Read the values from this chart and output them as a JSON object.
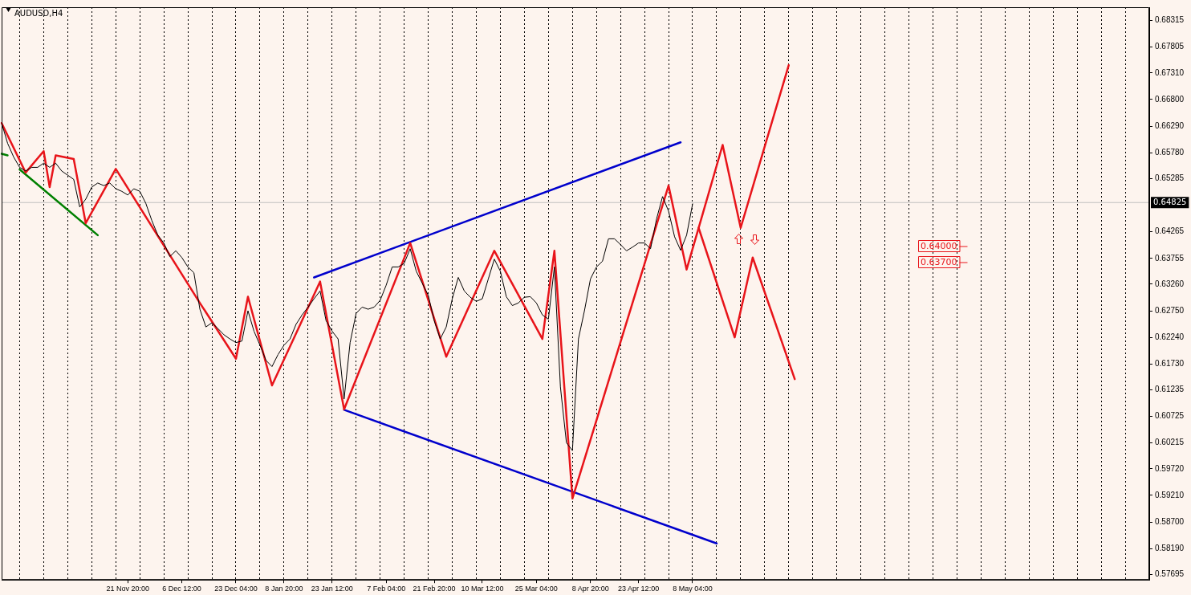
{
  "chart_data": {
    "type": "line",
    "title": "AUDUSD,H4",
    "categories": [
      null,
      null,
      null,
      null,
      null,
      null,
      null,
      null,
      null,
      null,
      null,
      null,
      null,
      null,
      null,
      null,
      null,
      null,
      null,
      null,
      null,
      "21 Nov 20:00",
      null,
      null,
      null,
      null,
      null,
      null,
      null,
      null,
      "6 Dec 12:00",
      null,
      null,
      null,
      null,
      null,
      null,
      null,
      null,
      "23 Dec 04:00",
      null,
      null,
      null,
      null,
      null,
      null,
      null,
      "8 Jan 20:00",
      null,
      null,
      null,
      null,
      null,
      null,
      null,
      "23 Jan 12:00",
      null,
      null,
      null,
      null,
      null,
      null,
      null,
      null,
      "7 Feb 04:00",
      null,
      null,
      null,
      null,
      null,
      null,
      null,
      "21 Feb 20:00",
      null,
      null,
      null,
      null,
      null,
      null,
      null,
      "10 Mar 12:00",
      null,
      null,
      null,
      null,
      null,
      null,
      null,
      null,
      "25 Mar 04:00",
      null,
      null,
      null,
      null,
      null,
      null,
      null,
      null,
      "8 Apr 20:00",
      null,
      null,
      null,
      null,
      null,
      null,
      null,
      "23 Apr 12:00",
      null,
      null,
      null,
      null,
      null,
      null,
      null,
      null,
      "8 May 04:00",
      null,
      null,
      null,
      null,
      null,
      null,
      null,
      null,
      null,
      null,
      null,
      null,
      null,
      null,
      null,
      null,
      null,
      null,
      null,
      null,
      null,
      null,
      null,
      null,
      null,
      null,
      null,
      null,
      null,
      null,
      null,
      null,
      null,
      null,
      null,
      null,
      null,
      null,
      null,
      null,
      null,
      null,
      null,
      null,
      null,
      null,
      null,
      null,
      null,
      null,
      null,
      null,
      null,
      null,
      null,
      null,
      null,
      null,
      null,
      null,
      null,
      null,
      null,
      null,
      null,
      null,
      null,
      null,
      null,
      null,
      null,
      null,
      null,
      null,
      null,
      null
    ],
    "series": [
      {
        "color": "#000000",
        "values": [
          0.6635,
          0.6596,
          0.657,
          0.655,
          0.6543,
          0.655,
          0.655,
          0.6558,
          0.655,
          0.6558,
          0.6543,
          0.6535,
          0.6527,
          0.6474,
          0.6489,
          0.6512,
          0.652,
          0.6515,
          0.652,
          0.6509,
          0.6504,
          0.6497,
          0.6509,
          0.6504,
          0.6481,
          0.6448,
          0.642,
          0.6405,
          0.6379,
          0.639,
          0.6377,
          0.6359,
          0.6348,
          0.6278,
          0.6244,
          0.6252,
          0.6241,
          0.6229,
          0.6221,
          0.6214,
          0.6217,
          0.6275,
          0.6236,
          0.6209,
          0.618,
          0.6168,
          0.6191,
          0.6209,
          0.6221,
          0.6249,
          0.6267,
          0.6282,
          0.6298,
          0.6313,
          0.6256,
          0.6236,
          0.6221,
          0.6106,
          0.6214,
          0.627,
          0.6282,
          0.6278,
          0.6282,
          0.6295,
          0.6324,
          0.6359,
          0.6359,
          0.6366,
          0.6394,
          0.6351,
          0.6328,
          0.6305,
          0.6256,
          0.6221,
          0.6244,
          0.6298,
          0.6339,
          0.6313,
          0.6301,
          0.6293,
          0.6298,
          0.6336,
          0.6374,
          0.6351,
          0.6302,
          0.6285,
          0.629,
          0.6301,
          0.6302,
          0.629,
          0.6267,
          0.6259,
          0.6359,
          0.6129,
          0.6022,
          0.6007,
          0.6221,
          0.6275,
          0.6336,
          0.6359,
          0.637,
          0.6413,
          0.6413,
          0.6402,
          0.639,
          0.6397,
          0.6405,
          0.6405,
          0.6394,
          0.6451,
          0.6494,
          0.6466,
          0.6417,
          0.6391,
          0.642,
          0.648,
          null,
          null,
          null,
          null,
          null,
          null,
          null,
          null,
          null,
          null,
          null,
          null,
          null,
          null,
          null,
          null,
          null,
          null,
          null,
          null,
          null,
          null,
          null,
          null,
          null,
          null,
          null,
          null,
          null,
          null,
          null,
          null,
          null,
          null,
          null,
          null,
          null,
          null,
          null,
          null,
          null,
          null,
          null,
          null,
          null,
          null,
          null,
          null,
          null,
          null,
          null,
          null,
          null,
          null,
          null,
          null,
          null,
          null,
          null,
          null,
          null,
          null,
          null,
          null,
          null,
          null,
          null,
          null,
          null,
          null,
          null,
          null,
          null,
          null,
          null,
          null
        ]
      },
      {
        "color": "#e8141a",
        "values": [
          0.6635,
          null,
          null,
          null,
          0.654,
          null,
          null,
          0.6581,
          0.6512,
          0.6573,
          null,
          null,
          0.6566,
          null,
          0.6443,
          null,
          null,
          null,
          null,
          0.6547,
          null,
          null,
          null,
          null,
          null,
          null,
          null,
          null,
          null,
          null,
          null,
          null,
          null,
          0.629,
          null,
          null,
          null,
          null,
          null,
          0.6183,
          null,
          0.6302,
          null,
          null,
          null,
          0.6132,
          null,
          null,
          null,
          null,
          null,
          null,
          null,
          0.6331,
          null,
          null,
          null,
          0.6086,
          null,
          null,
          null,
          null,
          null,
          null,
          null,
          null,
          null,
          null,
          0.6405,
          null,
          null,
          null,
          null,
          null,
          0.6187,
          null,
          null,
          null,
          null,
          null,
          null,
          null,
          0.639,
          null,
          null,
          null,
          null,
          null,
          null,
          null,
          0.6221,
          null,
          0.639,
          null,
          null,
          0.5915,
          null,
          null,
          null,
          null,
          null,
          null,
          null,
          null,
          null,
          null,
          null,
          null,
          null,
          null,
          null,
          0.6515,
          null,
          null,
          0.6354,
          null,
          null,
          null,
          null,
          null,
          0.6593,
          null,
          null,
          0.6434,
          null,
          null,
          null,
          null,
          null,
          null,
          null,
          0.6746,
          null,
          null,
          null,
          null,
          null,
          null,
          null,
          null,
          null,
          null,
          null,
          null,
          null,
          null,
          null,
          null,
          null,
          null,
          null,
          null,
          null,
          null,
          null,
          null,
          null,
          null,
          null,
          null,
          null,
          null,
          null,
          null,
          null,
          null,
          null,
          null,
          null,
          null,
          null,
          null,
          null,
          null,
          null,
          null,
          null,
          null,
          null,
          null,
          null,
          null,
          null,
          null,
          null,
          null,
          null,
          null,
          null,
          null,
          null,
          null
        ]
      },
      {
        "color": "#e8141a",
        "values": [
          null,
          null,
          null,
          null,
          null,
          null,
          null,
          null,
          null,
          null,
          null,
          null,
          null,
          null,
          null,
          null,
          null,
          null,
          null,
          null,
          null,
          null,
          null,
          null,
          null,
          null,
          null,
          null,
          null,
          null,
          null,
          null,
          null,
          null,
          null,
          null,
          null,
          null,
          null,
          null,
          null,
          null,
          null,
          null,
          null,
          null,
          null,
          null,
          null,
          null,
          null,
          null,
          null,
          null,
          null,
          null,
          null,
          null,
          null,
          null,
          null,
          null,
          null,
          null,
          null,
          null,
          null,
          null,
          null,
          null,
          null,
          null,
          null,
          null,
          null,
          null,
          null,
          null,
          null,
          null,
          null,
          null,
          null,
          null,
          null,
          null,
          null,
          null,
          null,
          null,
          null,
          null,
          null,
          null,
          null,
          null,
          null,
          null,
          null,
          null,
          null,
          null,
          null,
          null,
          null,
          null,
          null,
          null,
          null,
          null,
          null,
          null,
          null,
          null,
          null,
          null,
          0.6434,
          null,
          null,
          null,
          null,
          null,
          0.6224,
          null,
          null,
          0.6377,
          null,
          null,
          null,
          null,
          null,
          null,
          0.6144,
          null,
          null,
          null,
          null,
          null,
          null,
          null,
          null,
          null,
          null,
          null,
          null,
          null,
          null,
          null,
          null,
          null,
          null,
          null,
          null,
          null,
          null,
          null,
          null,
          null,
          null,
          null,
          null,
          null,
          null,
          null,
          null,
          null,
          null,
          null,
          null,
          null,
          null,
          null,
          null,
          null,
          null,
          null,
          null,
          null,
          null,
          null,
          null,
          null,
          null,
          null,
          null,
          null,
          null,
          null,
          null,
          null,
          null,
          null
        ]
      },
      {
        "color": "#0000cc",
        "values": [
          null,
          null,
          null,
          null,
          null,
          null,
          null,
          null,
          null,
          null,
          null,
          null,
          null,
          null,
          null,
          null,
          null,
          null,
          null,
          null,
          null,
          null,
          null,
          null,
          null,
          null,
          null,
          null,
          null,
          null,
          null,
          null,
          null,
          null,
          null,
          null,
          null,
          null,
          null,
          null,
          null,
          null,
          null,
          null,
          null,
          null,
          null,
          null,
          null,
          null,
          null,
          null,
          0.6339,
          null,
          null,
          null,
          null,
          null,
          null,
          null,
          null,
          null,
          null,
          null,
          null,
          null,
          null,
          null,
          null,
          null,
          null,
          null,
          null,
          null,
          null,
          null,
          null,
          null,
          null,
          null,
          null,
          null,
          null,
          null,
          null,
          null,
          null,
          null,
          null,
          null,
          null,
          null,
          null,
          null,
          null,
          null,
          null,
          null,
          null,
          null,
          null,
          null,
          null,
          null,
          null,
          null,
          null,
          null,
          null,
          null,
          null,
          null,
          null,
          0.6598,
          null,
          null,
          null,
          null,
          null,
          null,
          null,
          null,
          null,
          null,
          null,
          null,
          null,
          null,
          null,
          null,
          null,
          null,
          null,
          null,
          null,
          null,
          null,
          null,
          null,
          null,
          null,
          null,
          null,
          null,
          null,
          null,
          null,
          null,
          null,
          null,
          null,
          null,
          null,
          null,
          null,
          null,
          null,
          null,
          null,
          null,
          null,
          null,
          null,
          null,
          null,
          null,
          null,
          null,
          null,
          null,
          null,
          null,
          null,
          null,
          null,
          null,
          null,
          null,
          null,
          null,
          null,
          null,
          null,
          null,
          null,
          null,
          null,
          null,
          null,
          null,
          null,
          null
        ]
      },
      {
        "color": "#0000cc",
        "values": [
          null,
          null,
          null,
          null,
          null,
          null,
          null,
          null,
          null,
          null,
          null,
          null,
          null,
          null,
          null,
          null,
          null,
          null,
          null,
          null,
          null,
          null,
          null,
          null,
          null,
          null,
          null,
          null,
          null,
          null,
          null,
          null,
          null,
          null,
          null,
          null,
          null,
          null,
          null,
          null,
          null,
          null,
          null,
          null,
          null,
          null,
          null,
          null,
          null,
          null,
          null,
          null,
          null,
          null,
          null,
          null,
          null,
          0.6085,
          null,
          null,
          null,
          null,
          null,
          null,
          null,
          null,
          null,
          null,
          null,
          null,
          null,
          null,
          null,
          null,
          null,
          null,
          null,
          null,
          null,
          null,
          null,
          null,
          null,
          null,
          null,
          null,
          null,
          null,
          null,
          null,
          null,
          null,
          null,
          null,
          null,
          null,
          null,
          null,
          null,
          null,
          null,
          null,
          null,
          null,
          null,
          null,
          null,
          null,
          null,
          null,
          null,
          null,
          null,
          null,
          null,
          null,
          null,
          null,
          null,
          0.5829,
          null,
          null,
          null,
          null,
          null,
          null,
          null,
          null,
          null,
          null,
          null,
          null,
          null,
          null,
          null,
          null,
          null,
          null,
          null,
          null,
          null,
          null,
          null,
          null,
          null,
          null,
          null,
          null,
          null,
          null,
          null,
          null,
          null,
          null,
          null,
          null,
          null,
          null,
          null,
          null,
          null,
          null,
          null,
          null,
          null,
          null,
          null,
          null,
          null,
          null,
          null,
          null,
          null,
          null,
          null,
          null,
          null,
          null,
          null,
          null,
          null,
          null,
          null,
          null,
          null,
          null,
          null,
          null,
          null,
          null,
          null,
          null
        ]
      },
      {
        "color": "#008000",
        "values": [
          0.6576,
          0.6573,
          null,
          null,
          null,
          null,
          null,
          null,
          null,
          null,
          null,
          null,
          null,
          null,
          null,
          null,
          null,
          null,
          null,
          null,
          null,
          null,
          null,
          null,
          null,
          null,
          null,
          null,
          null,
          null,
          null,
          null,
          null,
          null,
          null,
          null,
          null,
          null,
          null,
          null,
          null,
          null,
          null,
          null,
          null,
          null,
          null,
          null,
          null,
          null,
          null,
          null,
          null,
          null,
          null,
          null,
          null,
          null,
          null,
          null,
          null,
          null,
          null,
          null,
          null,
          null,
          null,
          null,
          null,
          null,
          null,
          null,
          null,
          null,
          null,
          null,
          null,
          null,
          null,
          null,
          null,
          null,
          null,
          null,
          null,
          null,
          null,
          null,
          null,
          null,
          null,
          null,
          null,
          null,
          null,
          null,
          null,
          null,
          null,
          null,
          null,
          null,
          null,
          null,
          null,
          null,
          null,
          null,
          null,
          null,
          null,
          null,
          null,
          null,
          null,
          null,
          null,
          null,
          null,
          null,
          null,
          null,
          null,
          null,
          null,
          null,
          null,
          null,
          null,
          null,
          null,
          null,
          null,
          null,
          null,
          null,
          null,
          null,
          null,
          null,
          null,
          null,
          null,
          null,
          null,
          null,
          null,
          null,
          null,
          null,
          null,
          null,
          null,
          null,
          null,
          null,
          null,
          null,
          null,
          null,
          null,
          null,
          null,
          null,
          null,
          null,
          null,
          null,
          null,
          null,
          null,
          null,
          null,
          null,
          null,
          null,
          null,
          null,
          null,
          null,
          null,
          null,
          null,
          null,
          null,
          null,
          null,
          null,
          null,
          null,
          null,
          null
        ]
      },
      {
        "color": "#008000",
        "values": [
          null,
          null,
          null,
          0.6546,
          null,
          null,
          null,
          null,
          null,
          null,
          null,
          null,
          null,
          null,
          null,
          null,
          0.642,
          null,
          null,
          null,
          null,
          null,
          null,
          null,
          null,
          null,
          null,
          null,
          null,
          null,
          null,
          null,
          null,
          null,
          null,
          null,
          null,
          null,
          null,
          null,
          null,
          null,
          null,
          null,
          null,
          null,
          null,
          null,
          null,
          null,
          null,
          null,
          null,
          null,
          null,
          null,
          null,
          null,
          null,
          null,
          null,
          null,
          null,
          null,
          null,
          null,
          null,
          null,
          null,
          null,
          null,
          null,
          null,
          null,
          null,
          null,
          null,
          null,
          null,
          null,
          null,
          null,
          null,
          null,
          null,
          null,
          null,
          null,
          null,
          null,
          null,
          null,
          null,
          null,
          null,
          null,
          null,
          null,
          null,
          null,
          null,
          null,
          null,
          null,
          null,
          null,
          null,
          null,
          null,
          null,
          null,
          null,
          null,
          null,
          null,
          null,
          null,
          null,
          null,
          null,
          null,
          null,
          null,
          null,
          null,
          null,
          null,
          null,
          null,
          null,
          null,
          null,
          null,
          null,
          null,
          null,
          null,
          null,
          null,
          null,
          null,
          null,
          null,
          null,
          null,
          null,
          null,
          null,
          null,
          null,
          null,
          null,
          null,
          null,
          null,
          null,
          null,
          null,
          null,
          null,
          null,
          null,
          null,
          null,
          null,
          null,
          null,
          null,
          null,
          null,
          null,
          null,
          null,
          null,
          null,
          null,
          null,
          null,
          null,
          null,
          null,
          null,
          null,
          null,
          null,
          null,
          null,
          null,
          null,
          null,
          null,
          null
        ]
      }
    ],
    "ylim": [
      0.5759,
      0.6857
    ],
    "yticks": [
      0.68315,
      0.67805,
      {
        "value": 0.6731,
        "label": "0.67310"
      },
      {
        "value": 0.668,
        "label": "0.66800"
      },
      {
        "value": 0.6629,
        "label": "0.66290"
      },
      {
        "value": 0.6578,
        "label": "0.65780"
      },
      0.65285,
      0.64265,
      0.63755,
      {
        "value": 0.6326,
        "label": "0.63260"
      },
      {
        "value": 0.6275,
        "label": "0.62750"
      },
      {
        "value": 0.6224,
        "label": "0.62240"
      },
      {
        "value": 0.6173,
        "label": "0.61730"
      },
      0.61235,
      0.60725,
      0.60215,
      {
        "value": 0.5972,
        "label": "0.59720"
      },
      {
        "value": 0.5921,
        "label": "0.59210"
      },
      {
        "value": 0.587,
        "label": "0.58700"
      },
      {
        "value": 0.5819,
        "label": "0.58190"
      },
      0.57695
    ],
    "grid": "x",
    "ref_lines": [
      {
        "axis": "y",
        "value": 0.64825,
        "label": "0.64825",
        "color": "#c0c0c0"
      }
    ],
    "annotations": [
      "0.64000",
      "0.63700"
    ]
  }
}
